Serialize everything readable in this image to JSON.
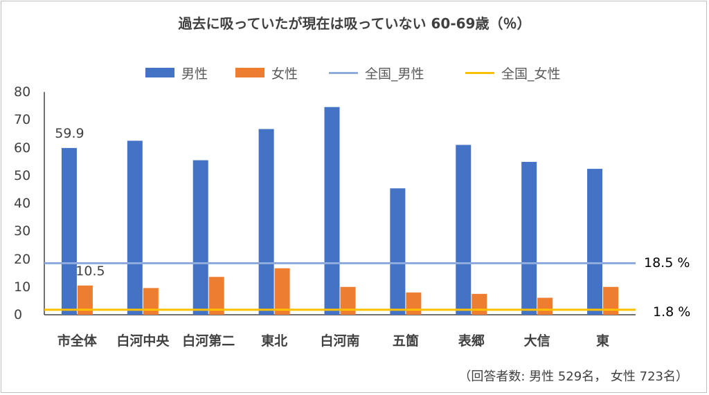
{
  "chart_data": {
    "type": "bar",
    "title": "過去に吸っていたが現在は吸っていない 60-69歳（％）",
    "categories": [
      "市全体",
      "白河中央",
      "白河第二",
      "東北",
      "白河南",
      "五箇",
      "表郷",
      "大信",
      "東"
    ],
    "series": [
      {
        "name": "男性",
        "color": "#4472c4",
        "values": [
          59.9,
          62.5,
          55.5,
          66.7,
          74.6,
          45.4,
          61.0,
          54.9,
          52.4
        ]
      },
      {
        "name": "女性",
        "color": "#ed7d31",
        "values": [
          10.5,
          9.6,
          13.6,
          16.7,
          10.0,
          8.0,
          7.5,
          6.1,
          10.0
        ]
      }
    ],
    "reference_lines": [
      {
        "name": "全国_男性",
        "value": 18.5,
        "label": "18.5 %",
        "color": "#8faadc"
      },
      {
        "name": "全国_女性",
        "value": 1.8,
        "label": "1.8 %",
        "color": "#ffc000"
      }
    ],
    "data_labels": [
      {
        "category_index": 0,
        "series_index": 0,
        "text": "59.9"
      },
      {
        "category_index": 0,
        "series_index": 1,
        "text": "10.5"
      }
    ],
    "yticks": [
      "0",
      "10",
      "20",
      "30",
      "40",
      "50",
      "60",
      "70",
      "80"
    ],
    "ylim": [
      0,
      80
    ],
    "grid": false,
    "legend_position": "top",
    "note": "（回答者数: 男性 529名， 女性 723名）"
  }
}
